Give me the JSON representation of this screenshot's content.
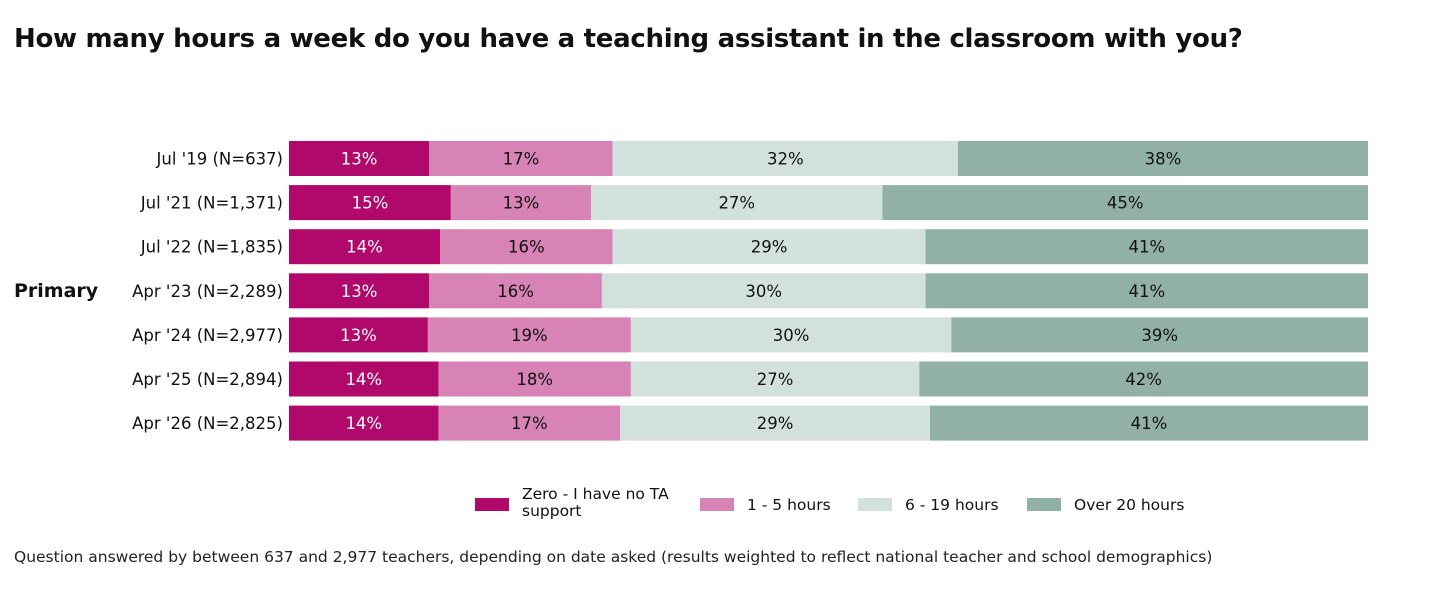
{
  "title": "How many hours a week do you have a teaching assistant in the classroom with you?",
  "footnote": "Question answered by between 637 and 2,977 teachers, depending on date asked (results weighted to reflect national teacher and school demographics)",
  "chart_data": {
    "type": "bar",
    "orientation": "horizontal",
    "stacked": true,
    "normalized": true,
    "group_label": "Primary",
    "categories": [
      "Jul '19 (N=637)",
      "Jul '21 (N=1,371)",
      "Jul '22 (N=1,835)",
      "Apr '23 (N=2,289)",
      "Apr '24 (N=2,977)",
      "Apr '25 (N=2,894)",
      "Apr '26 (N=2,825)"
    ],
    "series": [
      {
        "name": "Zero - I have no TA support",
        "color": "#b0086b",
        "text_color": "#ffffff",
        "values": [
          13,
          15,
          14,
          13,
          13,
          14,
          14
        ]
      },
      {
        "name": "1 - 5 hours",
        "color": "#d783b5",
        "text_color": "#111111",
        "values": [
          17,
          13,
          16,
          16,
          19,
          18,
          17
        ]
      },
      {
        "name": "6 - 19 hours",
        "color": "#d3e1dc",
        "text_color": "#111111",
        "values": [
          32,
          27,
          29,
          30,
          30,
          27,
          29
        ]
      },
      {
        "name": "Over 20 hours",
        "color": "#91b1a7",
        "text_color": "#111111",
        "values": [
          38,
          45,
          41,
          41,
          39,
          42,
          41
        ]
      }
    ],
    "value_suffix": "%",
    "legend_position": "bottom-center"
  }
}
